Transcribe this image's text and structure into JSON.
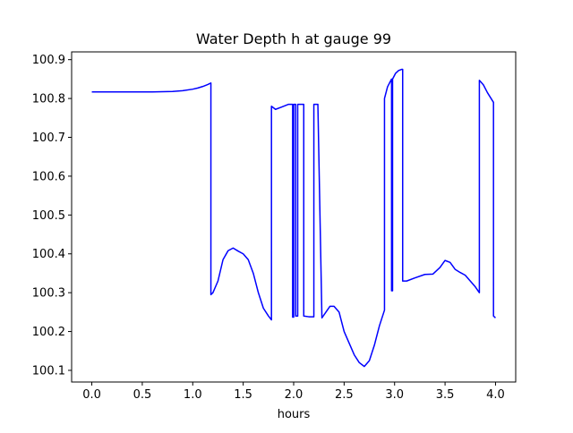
{
  "chart_data": {
    "type": "line",
    "title": "Water Depth h at gauge 99",
    "xlabel": "hours",
    "ylabel": "",
    "xlim": [
      -0.2,
      4.2
    ],
    "ylim": [
      100.07,
      100.92
    ],
    "x_ticks": [
      0.0,
      0.5,
      1.0,
      1.5,
      2.0,
      2.5,
      3.0,
      3.5,
      4.0
    ],
    "x_tick_labels": [
      "0.0",
      "0.5",
      "1.0",
      "1.5",
      "2.0",
      "2.5",
      "3.0",
      "3.5",
      "4.0"
    ],
    "y_ticks": [
      100.1,
      100.2,
      100.3,
      100.4,
      100.5,
      100.6,
      100.7,
      100.8,
      100.9
    ],
    "y_tick_labels": [
      "100.1",
      "100.2",
      "100.3",
      "100.4",
      "100.5",
      "100.6",
      "100.7",
      "100.8",
      "100.9"
    ],
    "grid": false,
    "line_color": "#0000ff",
    "series": [
      {
        "x": [
          0.0,
          0.2,
          0.4,
          0.6,
          0.8,
          0.9,
          1.0,
          1.05,
          1.1,
          1.15,
          1.18,
          1.18,
          1.2,
          1.25,
          1.3,
          1.35,
          1.4,
          1.45,
          1.5,
          1.55,
          1.6,
          1.65,
          1.7,
          1.75,
          1.78,
          1.78,
          1.82,
          1.88,
          1.95,
          1.99,
          1.99,
          2.0,
          2.0,
          2.02,
          2.02,
          2.04,
          2.04,
          2.1,
          2.1,
          2.15,
          2.2,
          2.2,
          2.24,
          2.28,
          2.32,
          2.36,
          2.4,
          2.45,
          2.5,
          2.55,
          2.6,
          2.65,
          2.7,
          2.75,
          2.8,
          2.85,
          2.9,
          2.9,
          2.93,
          2.97,
          2.97,
          2.98,
          2.98,
          3.01,
          3.04,
          3.07,
          3.08,
          3.08,
          3.12,
          3.2,
          3.3,
          3.38,
          3.45,
          3.5,
          3.55,
          3.6,
          3.65,
          3.7,
          3.75,
          3.8,
          3.84,
          3.84,
          3.88,
          3.92,
          3.98,
          3.98,
          4.0
        ],
        "y": [
          100.817,
          100.817,
          100.817,
          100.817,
          100.818,
          100.82,
          100.824,
          100.827,
          100.831,
          100.836,
          100.84,
          100.295,
          100.3,
          100.33,
          100.385,
          100.408,
          100.415,
          100.407,
          100.4,
          100.385,
          100.35,
          100.3,
          100.26,
          100.24,
          100.23,
          100.78,
          100.772,
          100.778,
          100.785,
          100.785,
          100.237,
          100.237,
          100.785,
          100.785,
          100.24,
          100.24,
          100.785,
          100.785,
          100.24,
          100.238,
          100.238,
          100.785,
          100.785,
          100.235,
          100.25,
          100.265,
          100.265,
          100.25,
          100.2,
          100.17,
          100.14,
          100.12,
          100.11,
          100.125,
          100.165,
          100.215,
          100.255,
          100.8,
          100.83,
          100.85,
          100.305,
          100.305,
          100.85,
          100.865,
          100.872,
          100.875,
          100.875,
          100.33,
          100.33,
          100.338,
          100.347,
          100.348,
          100.365,
          100.383,
          100.378,
          100.36,
          100.352,
          100.345,
          100.33,
          100.315,
          100.3,
          100.847,
          100.835,
          100.815,
          100.79,
          100.24,
          100.235
        ]
      }
    ]
  }
}
